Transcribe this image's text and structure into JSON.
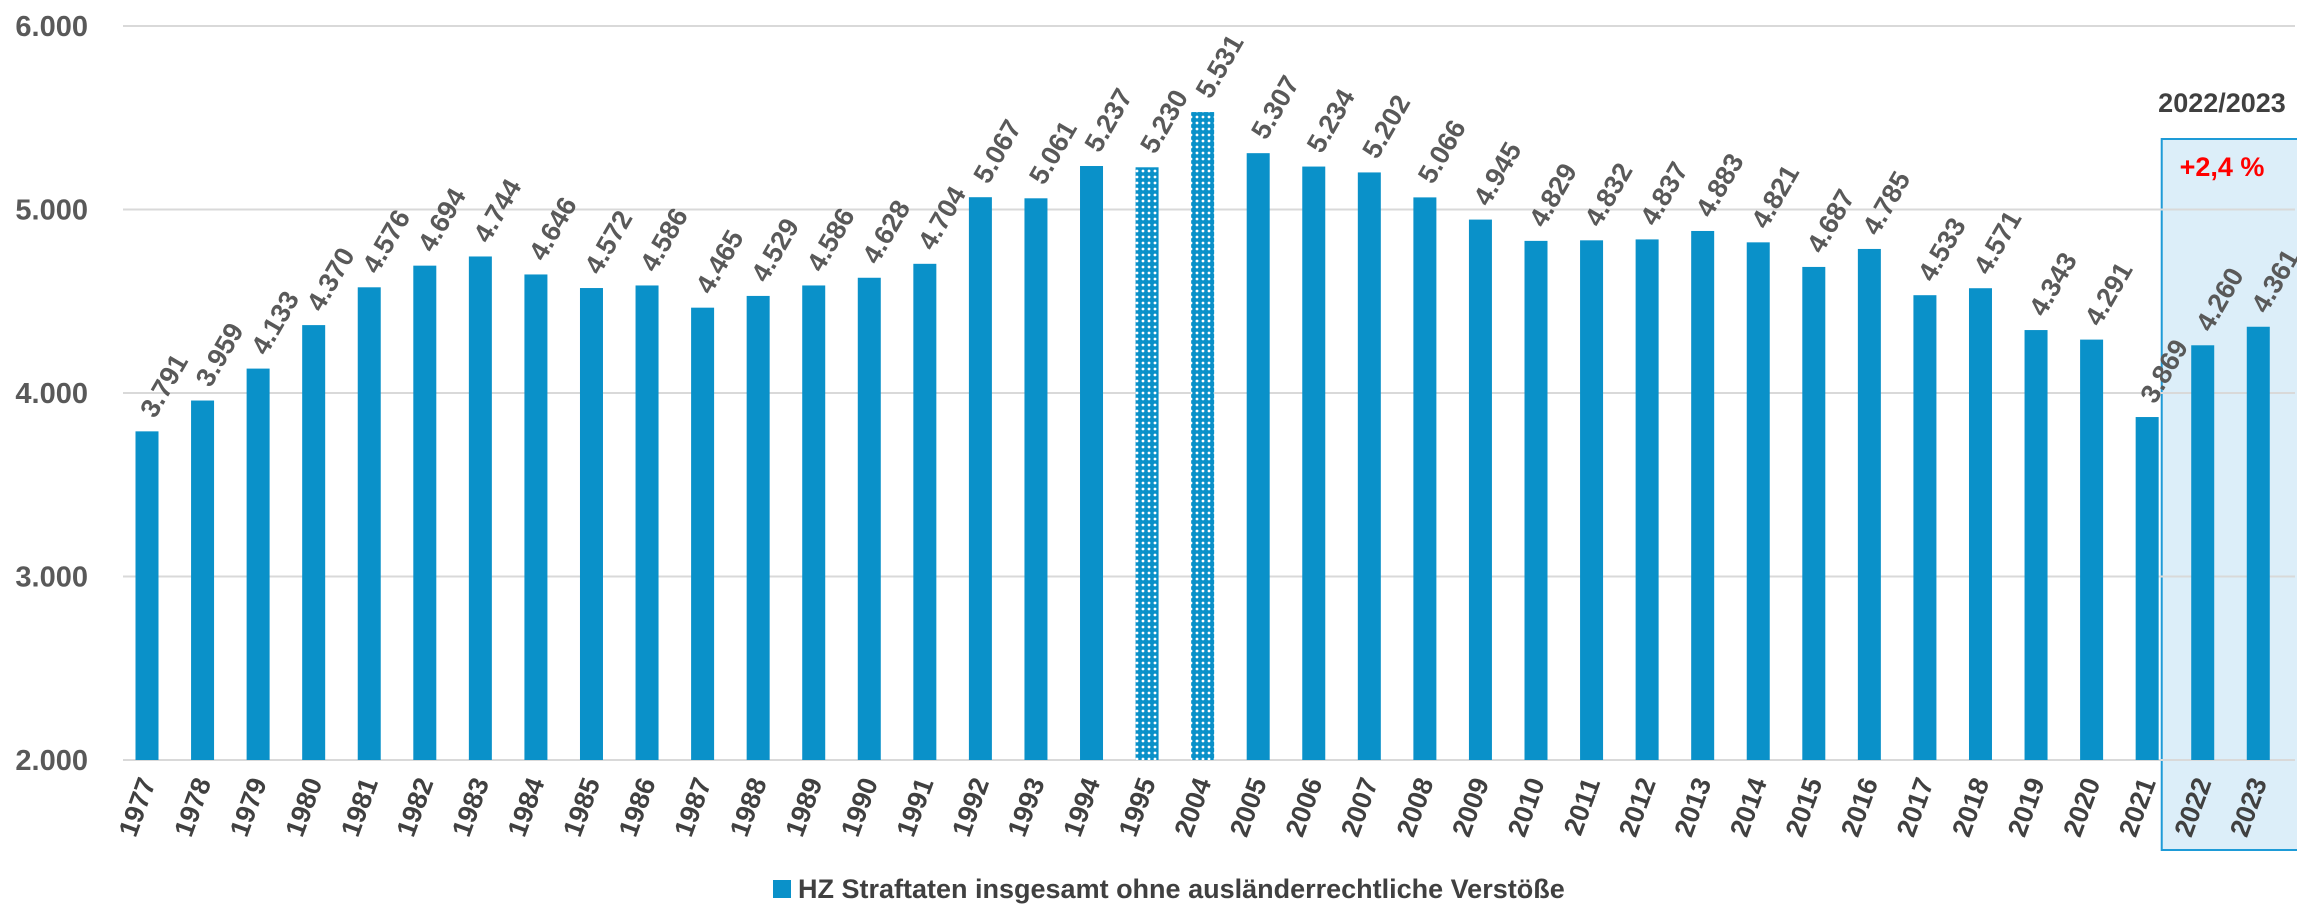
{
  "chart_data": {
    "type": "bar",
    "categories": [
      "1977",
      "1978",
      "1979",
      "1980",
      "1981",
      "1982",
      "1983",
      "1984",
      "1985",
      "1986",
      "1987",
      "1988",
      "1989",
      "1990",
      "1991",
      "1992",
      "1993",
      "1994",
      "1995",
      "2004",
      "2005",
      "2006",
      "2007",
      "2008",
      "2009",
      "2010",
      "2011",
      "2012",
      "2013",
      "2014",
      "2015",
      "2016",
      "2017",
      "2018",
      "2019",
      "2020",
      "2021",
      "2022",
      "2023"
    ],
    "series": [
      {
        "name": "HZ Straftaten insgesamt ohne ausländerrechtliche Verstöße",
        "values": [
          3791,
          3959,
          4133,
          4370,
          4576,
          4694,
          4744,
          4646,
          4572,
          4586,
          4465,
          4529,
          4586,
          4628,
          4704,
          5067,
          5061,
          5237,
          5230,
          5531,
          5307,
          5234,
          5202,
          5066,
          4945,
          4829,
          4832,
          4837,
          4883,
          4821,
          4687,
          4785,
          4533,
          4571,
          4343,
          4291,
          3869,
          4260,
          4361
        ],
        "data_labels": [
          "3.791",
          "3.959",
          "4.133",
          "4.370",
          "4.576",
          "4.694",
          "4.744",
          "4.646",
          "4.572",
          "4.586",
          "4.465",
          "4.529",
          "4.586",
          "4.628",
          "4.704",
          "5.067",
          "5.061",
          "5.237",
          "5.230",
          "5.531",
          "5.307",
          "5.234",
          "5.202",
          "5.066",
          "4.945",
          "4.829",
          "4.832",
          "4.837",
          "4.883",
          "4.821",
          "4.687",
          "4.785",
          "4.533",
          "4.571",
          "4.343",
          "4.291",
          "3.869",
          "4.260",
          "4.361"
        ]
      }
    ],
    "patterned_categories": [
      "1995",
      "2004"
    ],
    "ylim": [
      2000,
      6000
    ],
    "yticks": [
      2000,
      3000,
      4000,
      5000,
      6000
    ],
    "ytick_labels": [
      "2.000",
      "3.000",
      "4.000",
      "5.000",
      "6.000"
    ],
    "grid": true,
    "legend_position": "bottom",
    "colors": {
      "bar": "#0a91c9",
      "grid": "#d9d9d9",
      "highlight_fill": "#dceef9",
      "highlight_border": "#1e9bd7",
      "change": "#ff0000",
      "text": "#595959"
    },
    "highlight": {
      "categories": [
        "2022",
        "2023"
      ],
      "title": "2022/2023",
      "change": "+2,4 %"
    }
  }
}
